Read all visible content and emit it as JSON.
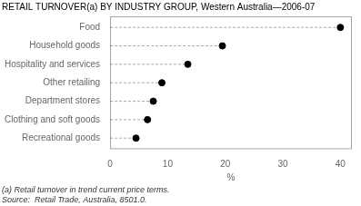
{
  "chart_data": {
    "type": "lollipop",
    "orientation": "horizontal",
    "title": "RETAIL TURNOVER(a) BY INDUSTRY GROUP, Western Australia—2006-07",
    "categories": [
      "Recreational goods",
      "Clothing and soft goods",
      "Department stores",
      "Other retailing",
      "Hospitality and services",
      "Household goods",
      "Food"
    ],
    "values": [
      4.5,
      6.5,
      7.5,
      9.0,
      13.5,
      19.5,
      40.0
    ],
    "xlim": [
      0,
      42
    ],
    "xticks": [
      0,
      10,
      20,
      30,
      40
    ],
    "xlabel": "%",
    "annotations": [
      "(a) Retail turnover in trend current price terms.",
      "Source:  Retail Trade, Australia, 8501.0."
    ],
    "color": "black",
    "marker": "circle",
    "line_style": "dashed",
    "grid": false
  }
}
